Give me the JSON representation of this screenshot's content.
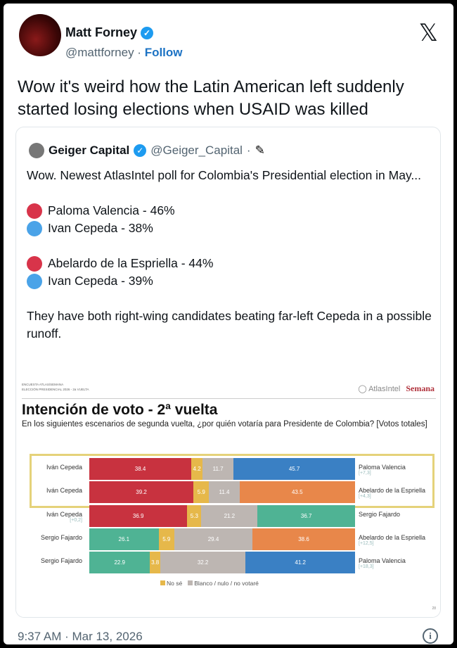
{
  "author": {
    "name": "Matt Forney",
    "handle": "@mattforney",
    "sep": " · ",
    "follow": "Follow"
  },
  "tweet_text": "Wow it's weird how the Latin American left suddenly started losing elections when USAID was killed",
  "quote": {
    "name": "Geiger Capital",
    "handle": "@Geiger_Capital",
    "sep": " ·",
    "intro": "Wow. Newest AtlasIntel poll for Colombia's Presidential election in May...",
    "pairs": [
      [
        {
          "label": "Paloma Valencia - 46%",
          "color": "#d8344a"
        },
        {
          "label": "Ivan Cepeda - 38%",
          "color": "#4aa3e8"
        }
      ],
      [
        {
          "label": "Abelardo de la Espriella - 44%",
          "color": "#d8344a"
        },
        {
          "label": "Ivan Cepeda - 39%",
          "color": "#4aa3e8"
        }
      ]
    ],
    "outro": "They have both right-wing candidates beating far-left Cepeda in a possible runoff."
  },
  "chart_data": {
    "type": "bar",
    "stacked": true,
    "orientation": "horizontal",
    "header_small": [
      "ENCUESTA ATLAS/SEMANA",
      "ELECCIÓN PRESIDENCIAL 2026 - 2a VUELTA"
    ],
    "brand_atlas": "AtlasIntel",
    "brand_semana": "Semana",
    "title": "Intención de voto - 2ª vuelta",
    "subtitle": "En los siguientes escenarios de segunda vuelta, ¿por quién votaría para Presidente de Colombia? [Votos totales]",
    "colors": {
      "Iván Cepeda": "#c8323f",
      "Sergio Fajardo": "#4fb394",
      "Paloma Valencia": "#3a80c4",
      "Abelardo de la Espriella": "#e8874a",
      "No sé": "#e6b84a",
      "Blanco / nulo / no votaré": "#bdb6b2"
    },
    "rows": [
      {
        "left": "Iván Cepeda",
        "left_margin": "",
        "right": "Paloma Valencia",
        "right_margin": "[+7,3]",
        "values": [
          38.4,
          4.2,
          11.7,
          45.7
        ],
        "highlighted": true
      },
      {
        "left": "Iván Cepeda",
        "left_margin": "",
        "right": "Abelardo de la Espriella",
        "right_margin": "[+4,3]",
        "values": [
          39.2,
          5.9,
          11.4,
          43.5
        ],
        "highlighted": true
      },
      {
        "left": "Iván Cepeda",
        "left_margin": "[+0,2]",
        "right": "Sergio Fajardo",
        "right_margin": "",
        "values": [
          36.9,
          5.3,
          21.2,
          36.7
        ],
        "highlighted": false
      },
      {
        "left": "Sergio Fajardo",
        "left_margin": "",
        "right": "Abelardo de la Espriella",
        "right_margin": "[+12,5]",
        "values": [
          26.1,
          5.9,
          29.4,
          38.6
        ],
        "highlighted": false
      },
      {
        "left": "Sergio Fajardo",
        "left_margin": "",
        "right": "Paloma Valencia",
        "right_margin": "[+18,3]",
        "values": [
          22.9,
          3.8,
          32.2,
          41.2
        ],
        "highlighted": false
      }
    ],
    "legend": [
      "No sé",
      "Blanco / nulo / no votaré"
    ],
    "page_number": "28"
  },
  "footer": {
    "time": "9:37 AM · Mar 13, 2026"
  }
}
